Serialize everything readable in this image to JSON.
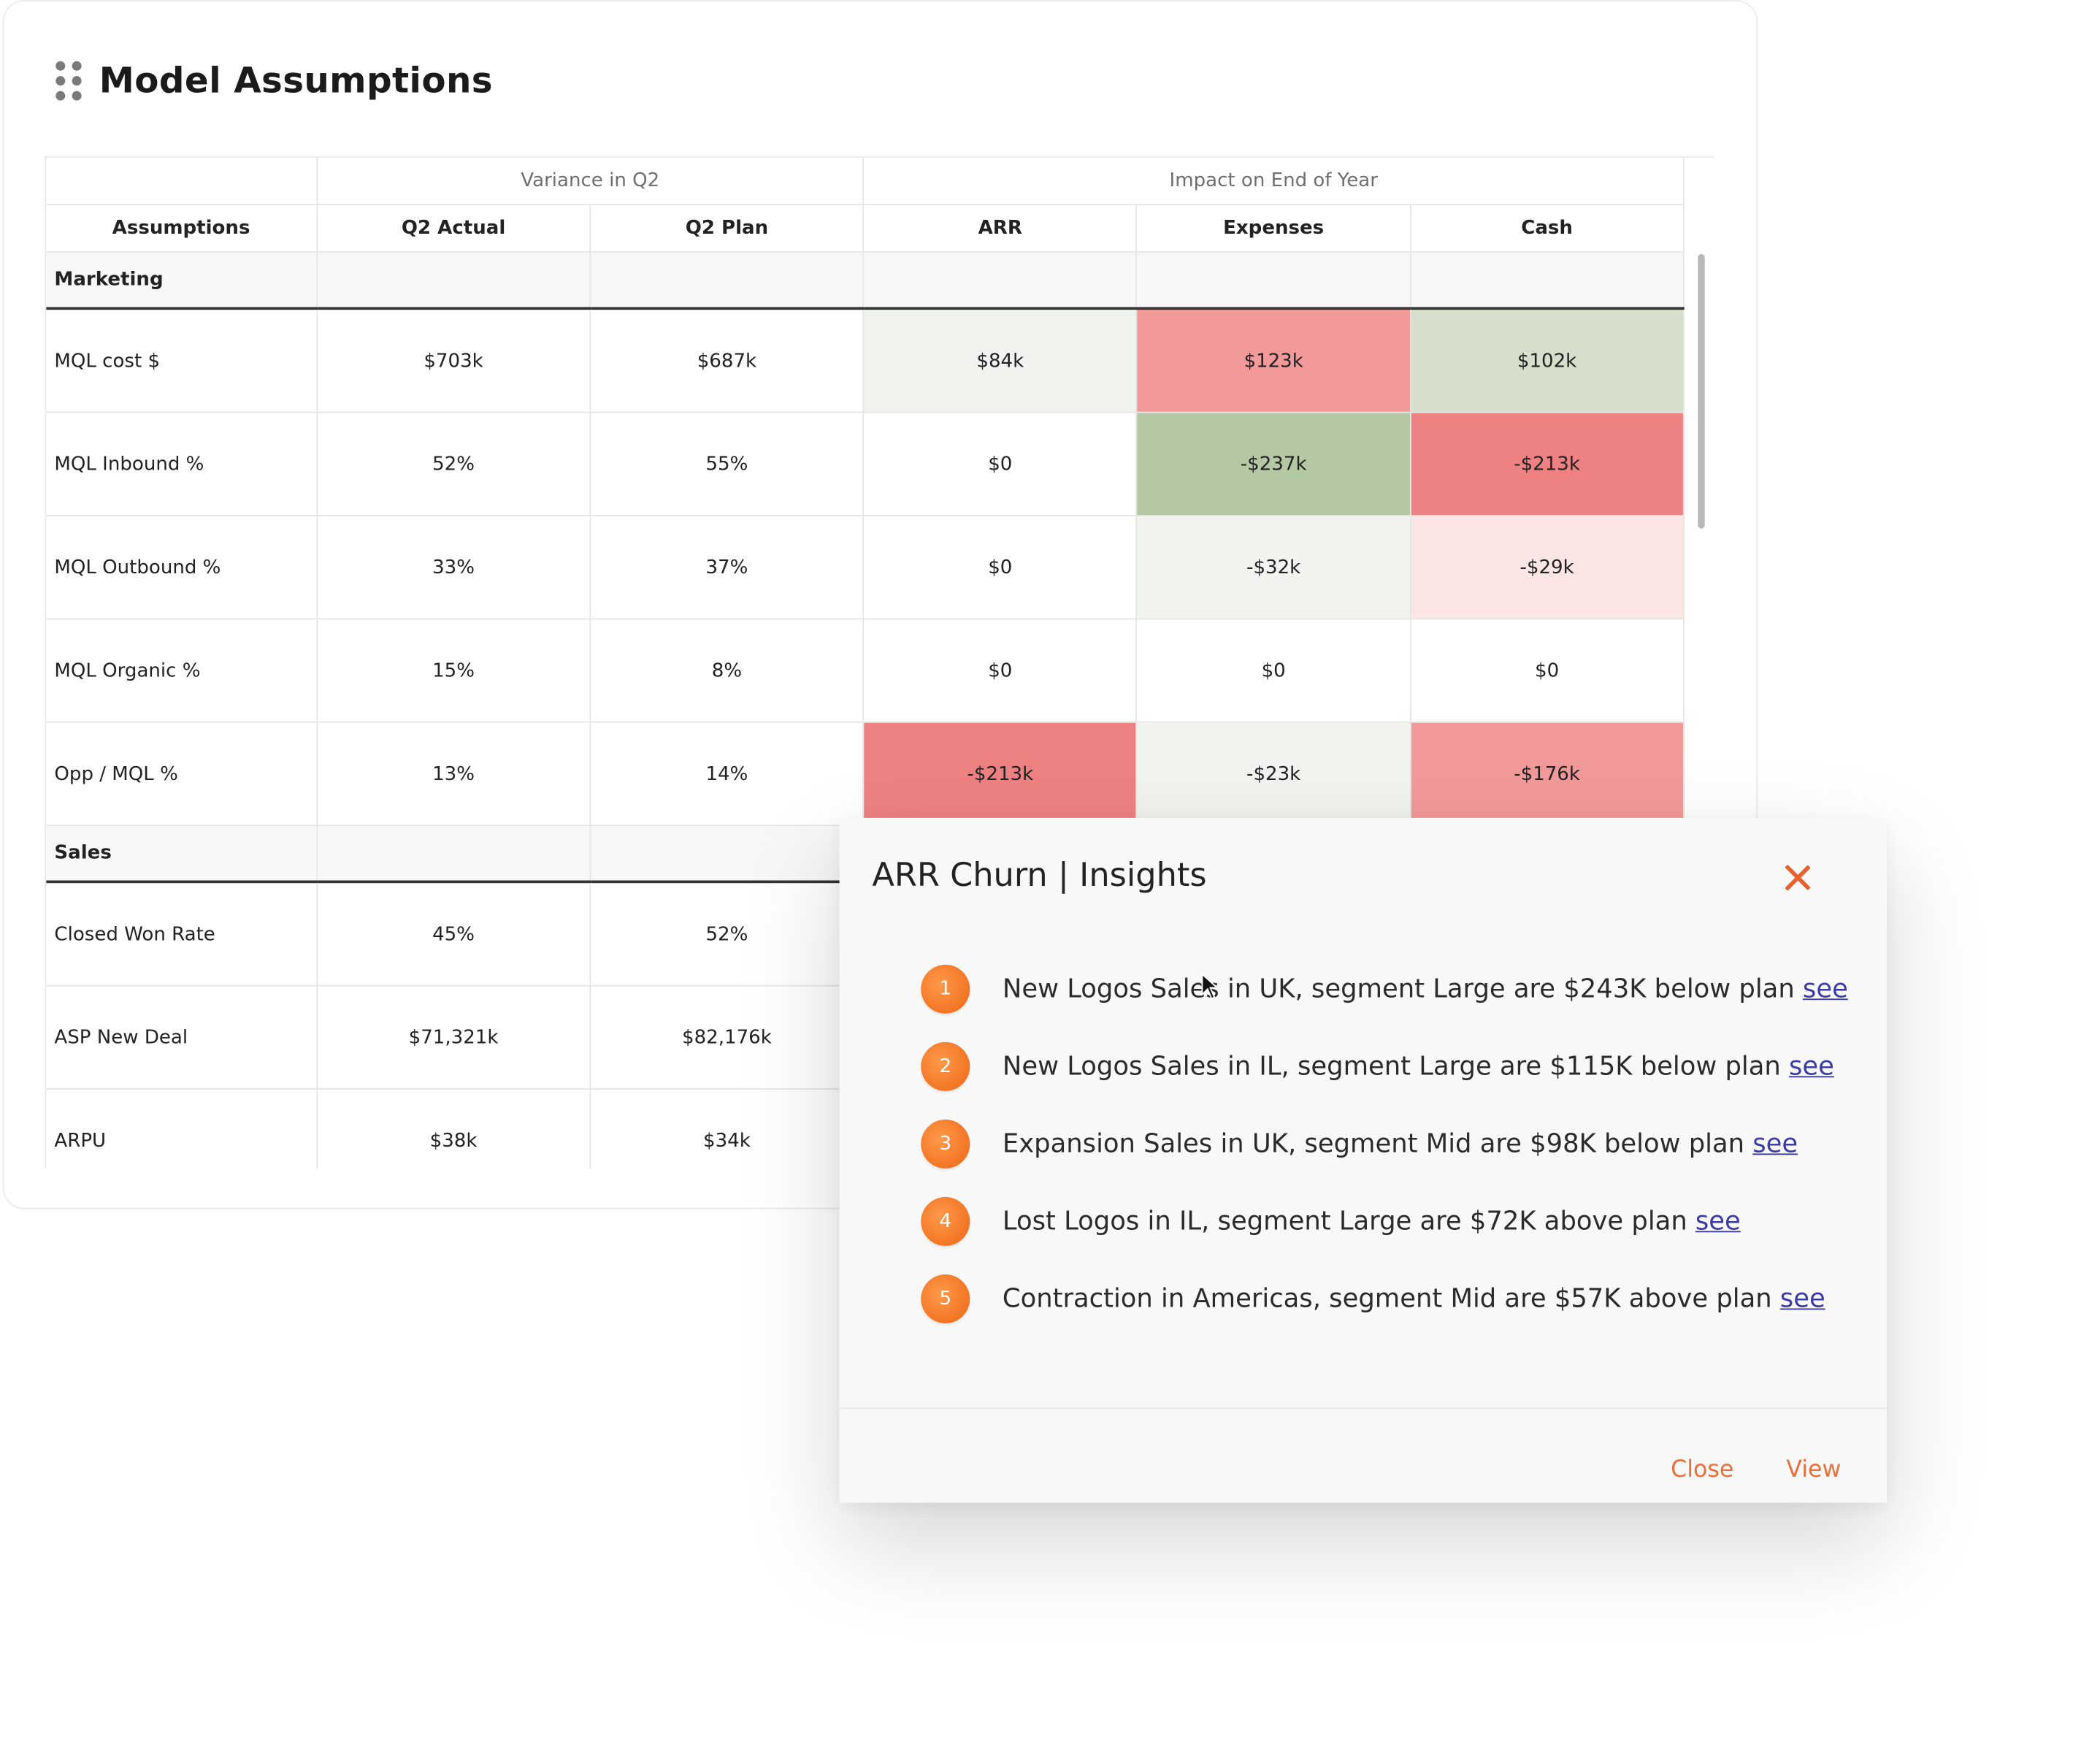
{
  "card": {
    "title": "Model Assumptions",
    "drag_icon": "drag-handle-icon"
  },
  "table": {
    "group_headers": [
      "",
      "Variance in Q2",
      "Impact on End of Year"
    ],
    "column_headers": [
      "Assumptions",
      "Q2 Actual",
      "Q2 Plan",
      "ARR",
      "Expenses",
      "Cash"
    ],
    "sections": [
      {
        "name": "Marketing",
        "rows": [
          {
            "label": "MQL cost $",
            "q2_actual": "$703k",
            "q2_plan": "$687k",
            "arr": "$84k",
            "expenses": "$123k",
            "cash": "$102k"
          },
          {
            "label": "MQL Inbound %",
            "q2_actual": "52%",
            "q2_plan": "55%",
            "arr": "$0",
            "expenses": "-$237k",
            "cash": "-$213k"
          },
          {
            "label": "MQL Outbound %",
            "q2_actual": "33%",
            "q2_plan": "37%",
            "arr": "$0",
            "expenses": "-$32k",
            "cash": "-$29k"
          },
          {
            "label": "MQL Organic %",
            "q2_actual": "15%",
            "q2_plan": "8%",
            "arr": "$0",
            "expenses": "$0",
            "cash": "$0"
          },
          {
            "label": "Opp / MQL %",
            "q2_actual": "13%",
            "q2_plan": "14%",
            "arr": "-$213k",
            "expenses": "-$23k",
            "cash": "-$176k"
          }
        ]
      },
      {
        "name": "Sales",
        "rows": [
          {
            "label": "Closed Won Rate",
            "q2_actual": "45%",
            "q2_plan": "52%"
          },
          {
            "label": "ASP New Deal",
            "q2_actual": "$71,321k",
            "q2_plan": "$82,176k"
          },
          {
            "label": "ARPU",
            "q2_actual": "$38k",
            "q2_plan": "$34k"
          }
        ]
      }
    ],
    "heat_colors": {
      "strong_red": "#ee8282",
      "mid_red": "#f29a99",
      "light_red": "#fbe6e5",
      "strong_green": "#b5c8a4",
      "light_green": "#d5dfcc",
      "pale": "#f1f3ef",
      "none": "#ffffff"
    }
  },
  "popup": {
    "title": "ARR Churn | Insights",
    "close_icon": "close-x-icon",
    "insights": [
      {
        "num": "1",
        "text": "New Logos Sales in UK, segment Large are $243K below plan",
        "link": "see"
      },
      {
        "num": "2",
        "text": "New Logos Sales in IL, segment Large are $115K below plan",
        "link": "see"
      },
      {
        "num": "3",
        "text": "Expansion Sales in UK, segment Mid are $98K below plan",
        "link": "see"
      },
      {
        "num": "4",
        "text": "Lost Logos in IL, segment Large are $72K above plan",
        "link": "see"
      },
      {
        "num": "5",
        "text": "Contraction in Americas, segment Mid are $57K above plan",
        "link": "see"
      }
    ],
    "close_label": "Close",
    "view_label": "View",
    "accent_color": "#e8703a",
    "badge_color": "#f27524"
  }
}
